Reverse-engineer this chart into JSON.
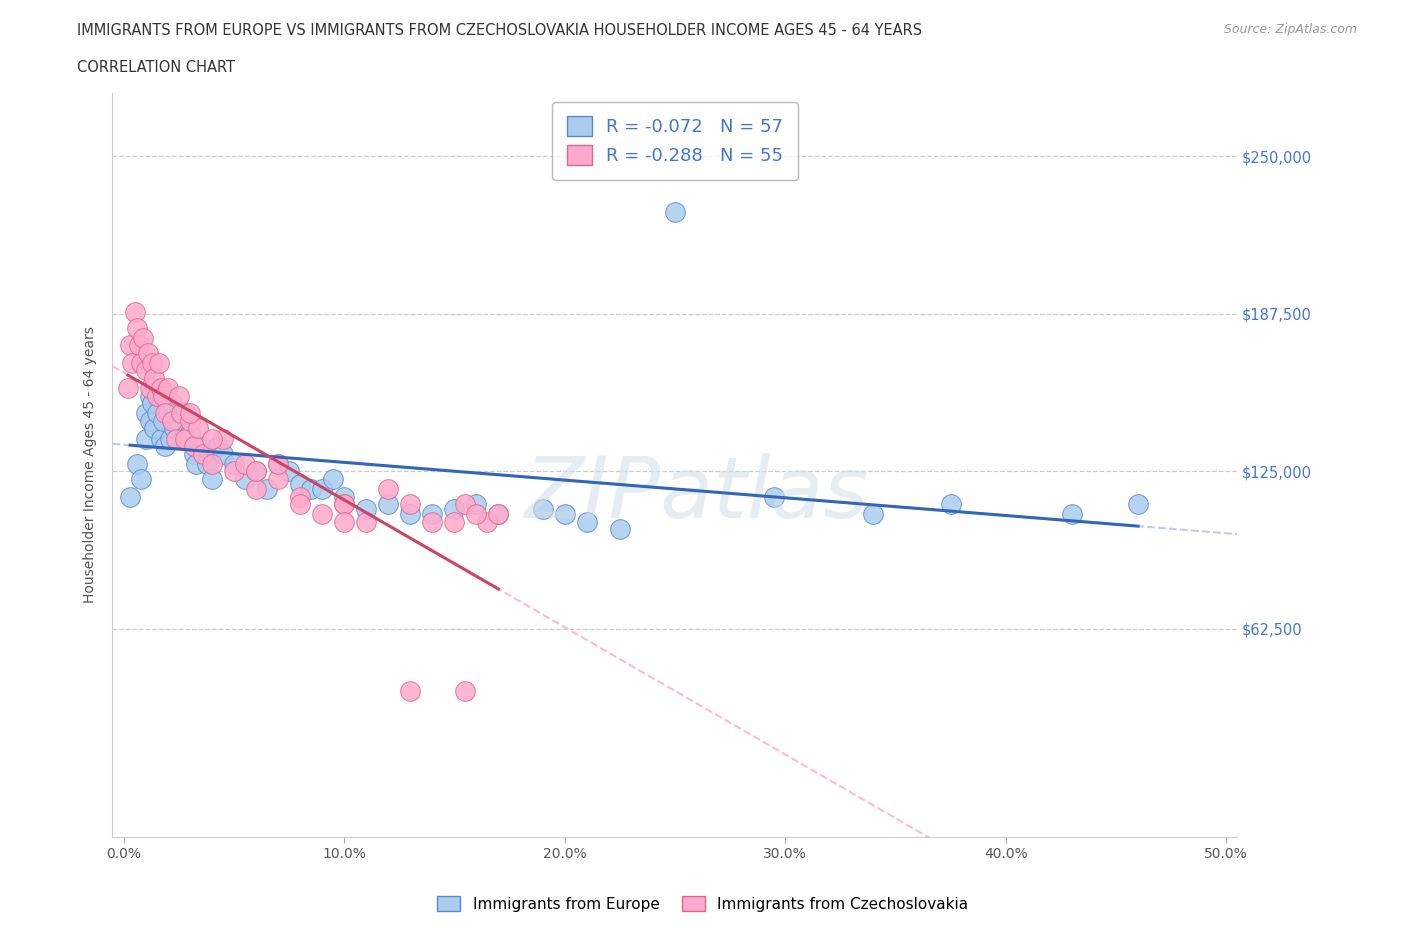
{
  "title_line1": "IMMIGRANTS FROM EUROPE VS IMMIGRANTS FROM CZECHOSLOVAKIA HOUSEHOLDER INCOME AGES 45 - 64 YEARS",
  "title_line2": "CORRELATION CHART",
  "source_text": "Source: ZipAtlas.com",
  "ylabel": "Householder Income Ages 45 - 64 years",
  "xlim": [
    -0.005,
    0.505
  ],
  "ylim": [
    -20000,
    275000
  ],
  "xtick_labels": [
    "0.0%",
    "10.0%",
    "20.0%",
    "30.0%",
    "40.0%",
    "50.0%"
  ],
  "xtick_vals": [
    0.0,
    0.1,
    0.2,
    0.3,
    0.4,
    0.5
  ],
  "ytick_vals": [
    62500,
    125000,
    187500,
    250000
  ],
  "ytick_labels": [
    "$62,500",
    "$125,000",
    "$187,500",
    "$250,000"
  ],
  "gridline_vals": [
    62500,
    125000,
    187500,
    250000
  ],
  "europe_color": "#aaccee",
  "europe_edge": "#5588cc",
  "czecho_color": "#ffaacc",
  "czecho_edge": "#dd6688",
  "trend_europe_color": "#3366bb",
  "trend_czecho_color": "#cc4466",
  "trend_dashed_color_eu": "#bbccee",
  "trend_dashed_color_cz": "#ffbbcc",
  "R_europe": -0.072,
  "N_europe": 57,
  "R_czecho": -0.288,
  "N_czecho": 55,
  "europe_x": [
    0.003,
    0.006,
    0.008,
    0.01,
    0.01,
    0.012,
    0.012,
    0.013,
    0.014,
    0.015,
    0.016,
    0.017,
    0.018,
    0.019,
    0.02,
    0.021,
    0.022,
    0.023,
    0.025,
    0.027,
    0.028,
    0.03,
    0.032,
    0.033,
    0.035,
    0.038,
    0.04,
    0.043,
    0.045,
    0.05,
    0.055,
    0.06,
    0.065,
    0.07,
    0.075,
    0.08,
    0.085,
    0.09,
    0.095,
    0.1,
    0.11,
    0.12,
    0.13,
    0.14,
    0.15,
    0.16,
    0.17,
    0.19,
    0.2,
    0.21,
    0.225,
    0.295,
    0.34,
    0.375,
    0.43,
    0.46,
    0.25
  ],
  "europe_y": [
    115000,
    128000,
    122000,
    148000,
    138000,
    155000,
    145000,
    152000,
    142000,
    148000,
    158000,
    138000,
    145000,
    135000,
    148000,
    138000,
    152000,
    142000,
    145000,
    138000,
    148000,
    140000,
    132000,
    128000,
    135000,
    128000,
    122000,
    135000,
    132000,
    128000,
    122000,
    125000,
    118000,
    128000,
    125000,
    120000,
    118000,
    118000,
    122000,
    115000,
    110000,
    112000,
    108000,
    108000,
    110000,
    112000,
    108000,
    110000,
    108000,
    105000,
    102000,
    115000,
    108000,
    112000,
    108000,
    112000,
    228000
  ],
  "czecho_x": [
    0.002,
    0.003,
    0.004,
    0.005,
    0.006,
    0.007,
    0.008,
    0.009,
    0.01,
    0.011,
    0.012,
    0.013,
    0.014,
    0.015,
    0.016,
    0.017,
    0.018,
    0.019,
    0.02,
    0.022,
    0.024,
    0.026,
    0.028,
    0.03,
    0.032,
    0.034,
    0.036,
    0.04,
    0.045,
    0.05,
    0.055,
    0.06,
    0.07,
    0.08,
    0.09,
    0.1,
    0.11,
    0.13,
    0.15,
    0.155,
    0.165,
    0.17,
    0.07,
    0.1,
    0.12,
    0.14,
    0.16,
    0.025,
    0.03,
    0.04,
    0.06,
    0.08,
    0.1,
    0.13,
    0.155
  ],
  "czecho_y": [
    158000,
    175000,
    168000,
    188000,
    182000,
    175000,
    168000,
    178000,
    165000,
    172000,
    158000,
    168000,
    162000,
    155000,
    168000,
    158000,
    155000,
    148000,
    158000,
    145000,
    138000,
    148000,
    138000,
    145000,
    135000,
    142000,
    132000,
    128000,
    138000,
    125000,
    128000,
    118000,
    122000,
    115000,
    108000,
    112000,
    105000,
    112000,
    105000,
    112000,
    105000,
    108000,
    128000,
    112000,
    118000,
    105000,
    108000,
    155000,
    148000,
    138000,
    125000,
    112000,
    105000,
    38000,
    38000
  ]
}
